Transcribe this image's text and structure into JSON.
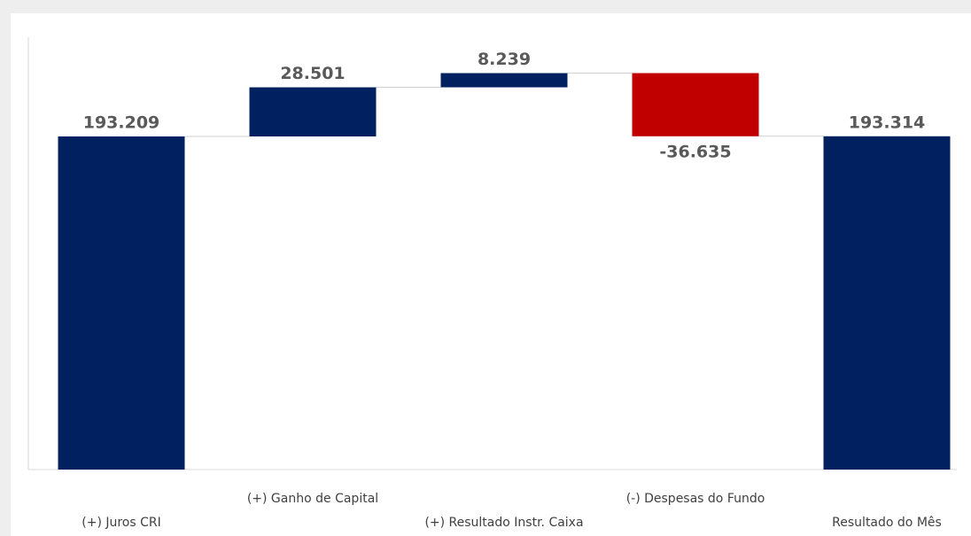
{
  "chart_data": {
    "type": "waterfall",
    "categories": [
      "(+) Juros CRI",
      "(+) Ganho de Capital",
      "(+) Resultado Instr. Caixa",
      "(-) Despesas do Fundo",
      "Resultado do Mês"
    ],
    "values": [
      193209,
      28501,
      8239,
      -36635,
      193314
    ],
    "value_labels": [
      "193.209",
      "28.501",
      "8.239",
      "-36.635",
      "193.314"
    ],
    "color": "#002060",
    "negative_color": "#c00000",
    "ylim": [
      0,
      250000
    ]
  }
}
